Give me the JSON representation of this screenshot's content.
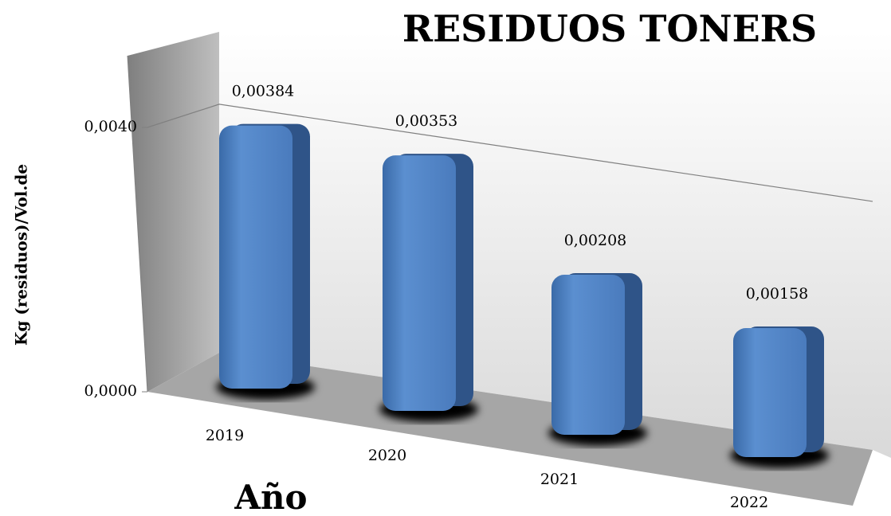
{
  "chart_data": {
    "type": "bar",
    "title": "RESIDUOS TONERS",
    "xlabel": "Año",
    "ylabel": "Kg (residuos)/Vol.de",
    "categories": [
      "2019",
      "2020",
      "2021",
      "2022"
    ],
    "values": [
      0.00384,
      0.00353,
      0.00208,
      0.00158
    ],
    "value_labels": [
      "0,00384",
      "0,00353",
      "0,00208",
      "0,00158"
    ],
    "color": "#4f81bd",
    "ylim": [
      0,
      0.005
    ],
    "yticks": [
      {
        "value": 0,
        "label": "0,0000"
      },
      {
        "value": 0.004,
        "label": "0,0040"
      }
    ],
    "grid": true
  }
}
